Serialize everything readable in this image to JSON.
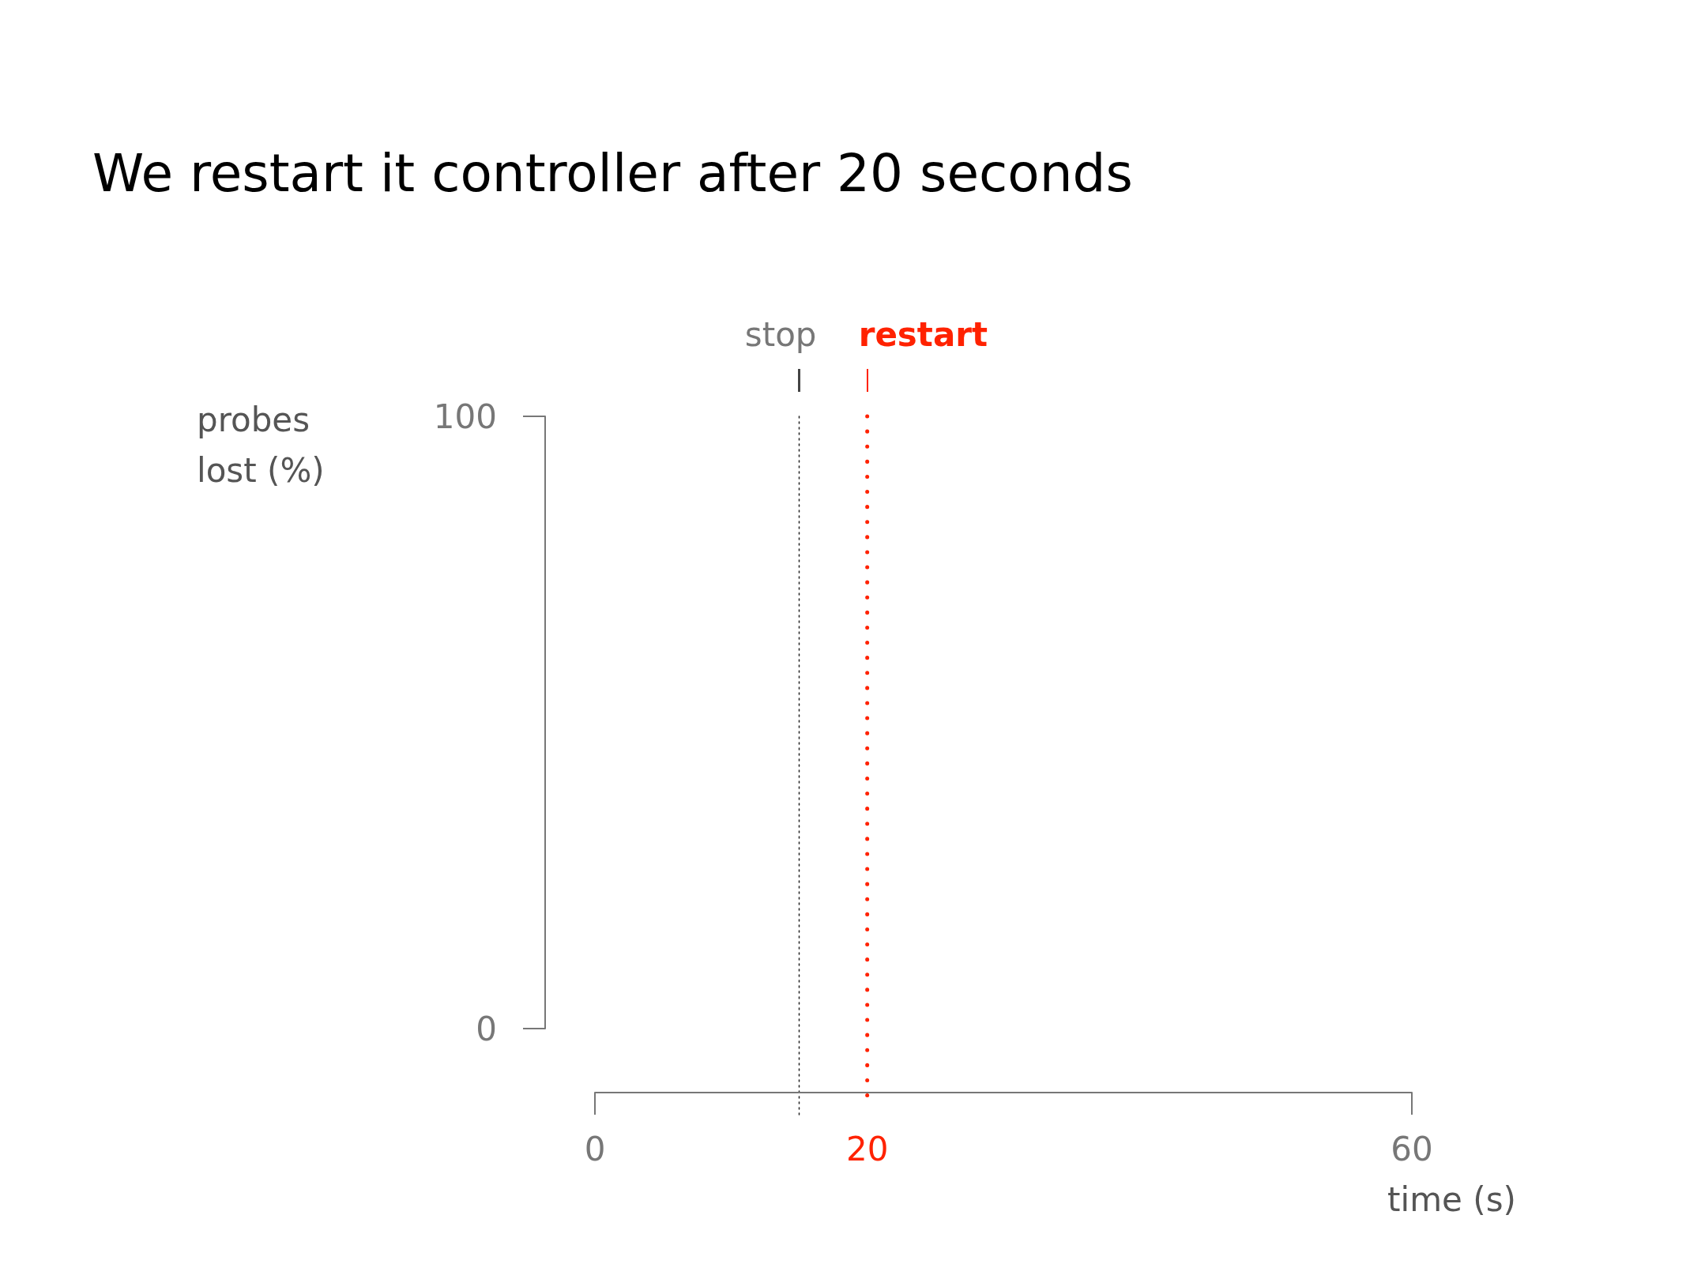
{
  "chart_data": {
    "type": "line",
    "title": "We restart it controller after 20 seconds",
    "xlabel": "time (s)",
    "ylabel": "probes lost (%)",
    "xlim": [
      0,
      60
    ],
    "xticks": [
      0,
      20,
      60
    ],
    "ylim": [
      0,
      100
    ],
    "yticks": [
      0,
      100
    ],
    "grid": false,
    "ref_lines": [
      {
        "axis": "x",
        "value": 15,
        "label": "stop",
        "line_style": "dotted"
      },
      {
        "axis": "x",
        "value": 20,
        "label": "restart",
        "color": "#ff2200",
        "line_style": "dotted"
      }
    ]
  }
}
